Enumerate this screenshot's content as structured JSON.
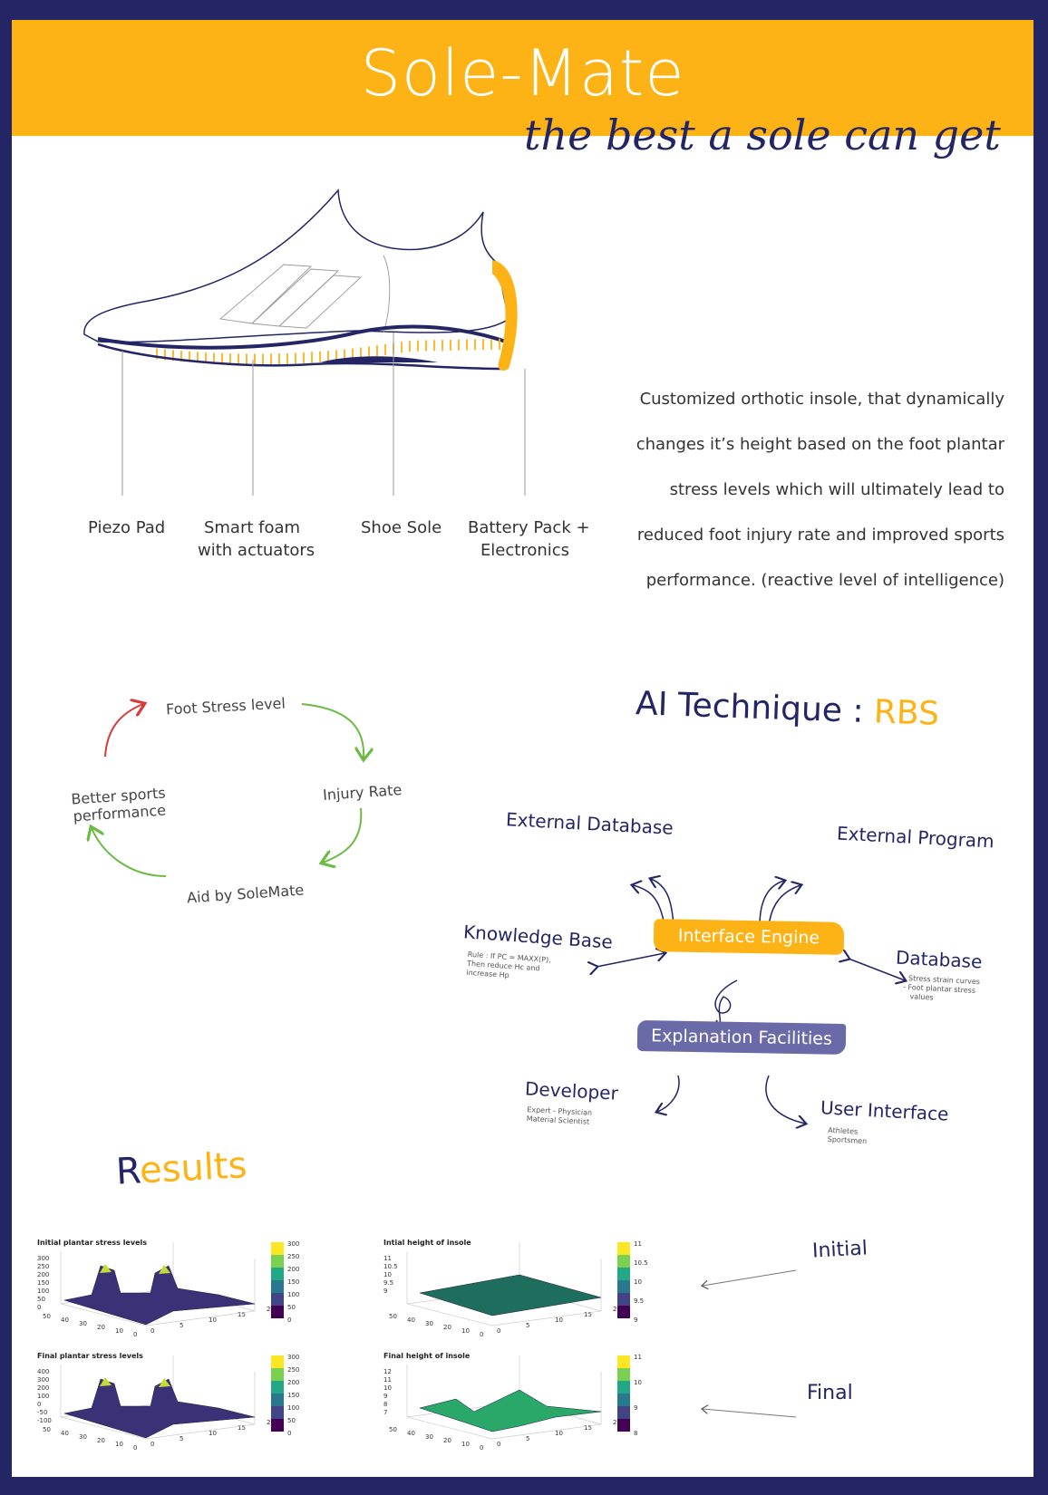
{
  "header": {
    "title": "Sole-Mate",
    "tagline": "the best a sole can get"
  },
  "colors": {
    "accent": "#fdb316",
    "navy": "#242565",
    "purple": "#6b6aa8",
    "green": "#6cbb45",
    "red": "#d63a3a"
  },
  "shoe_labels": {
    "piezo": "Piezo Pad",
    "foam_1": "Smart foam",
    "foam_2": "with actuators",
    "sole": "Shoe Sole",
    "battery_1": "Battery Pack +",
    "battery_2": "Electronics"
  },
  "description": [
    "Customized orthotic insole, that dynamically",
    "changes it’s height based on the foot plantar",
    "stress levels which will ultimately lead to",
    "reduced foot injury rate and improved sports",
    "performance. (reactive level of intelligence)"
  ],
  "cycle": {
    "stress": "Foot Stress level",
    "injury": "Injury Rate",
    "aid": "Aid by SoleMate",
    "better_1": "Better sports",
    "better_2": "performance"
  },
  "ai": {
    "heading": "AI Technique :",
    "highlight": "RBS",
    "external_db": "External Database",
    "external_prog": "External Program",
    "knowledge": "Knowledge Base",
    "rule_1": "Rule : If PC = MAXX(P),",
    "rule_2": "Then reduce Hc and",
    "rule_3": "increase Hp",
    "engine": "Interface Engine",
    "database": "Database",
    "db_note_1": "- Stress strain curves",
    "db_note_2": "- Foot plantar stress",
    "db_note_3": "values",
    "explanation": "Explanation Facilities",
    "developer": "Developer",
    "dev_note_1": "Expert - Physician",
    "dev_note_2": "Material Scientist",
    "ui": "User Interface",
    "ui_note_1": "Athletes",
    "ui_note_2": "Sportsmen"
  },
  "results": {
    "heading_first": "R",
    "heading_rest": "esults",
    "initial": "Initial",
    "final": "Final",
    "plots": [
      {
        "title": "Initial plantar stress levels",
        "z_ticks": [
          "300",
          "250",
          "200",
          "150",
          "100",
          "50",
          "0"
        ],
        "cb_ticks": [
          "300",
          "250",
          "200",
          "150",
          "100",
          "50",
          "0"
        ]
      },
      {
        "title": "Intial height of insole",
        "z_ticks": [
          "11",
          "10.5",
          "10",
          "9.5",
          "9"
        ],
        "cb_ticks": [
          "11",
          "10.5",
          "10",
          "9.5",
          "9"
        ]
      },
      {
        "title": "Final plantar stress levels",
        "z_ticks": [
          "400",
          "300",
          "200",
          "100",
          "0",
          "-50",
          "-100"
        ],
        "cb_ticks": [
          "300",
          "250",
          "200",
          "150",
          "100",
          "50",
          "0"
        ]
      },
      {
        "title": "Final height of insole",
        "z_ticks": [
          "12",
          "11",
          "10",
          "9",
          "8",
          "7"
        ],
        "cb_ticks": [
          "11",
          "10",
          "9",
          "8"
        ]
      }
    ],
    "x_ticks": [
      "50",
      "40",
      "30",
      "20",
      "10",
      "0"
    ],
    "y_ticks": [
      "0",
      "5",
      "10",
      "15",
      "20"
    ]
  }
}
